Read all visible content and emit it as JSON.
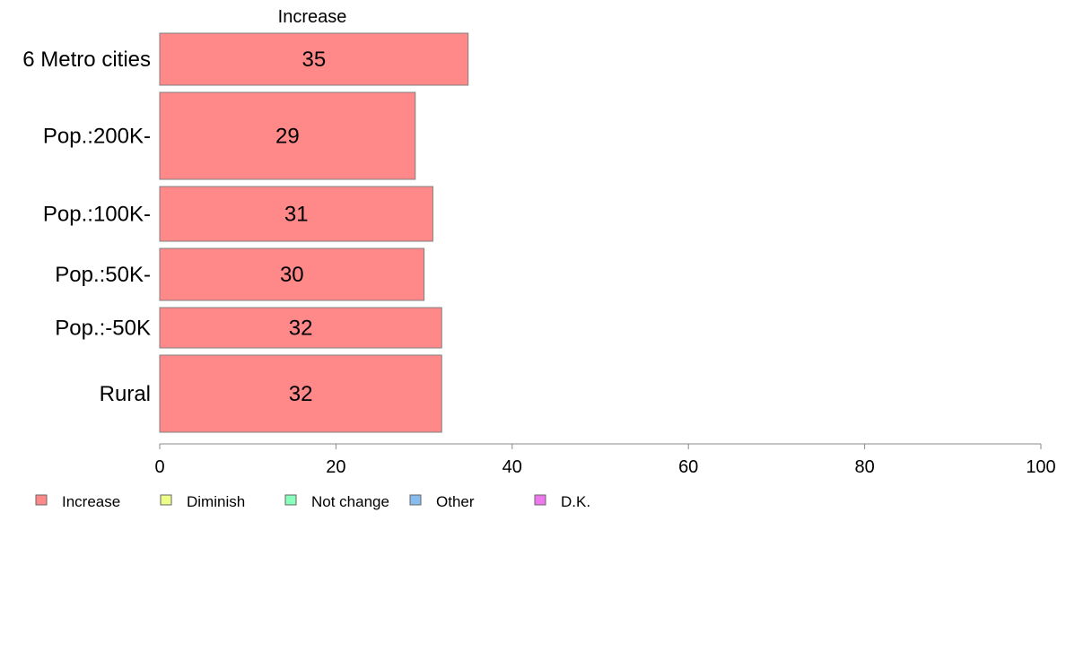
{
  "chart_data": {
    "type": "bar",
    "orientation": "horizontal",
    "series_label": "Increase",
    "categories": [
      "6 Metro cities",
      "Pop.:200K-",
      "Pop.:100K-",
      "Pop.:50K-",
      "Pop.:-50K",
      "Rural"
    ],
    "series": [
      {
        "name": "Increase",
        "values": [
          35,
          29,
          31,
          30,
          32,
          32
        ],
        "value_labels": [
          "35",
          "29",
          "31",
          "30",
          "32",
          "32"
        ]
      }
    ],
    "xlim": [
      0,
      100
    ],
    "xticks": [
      0,
      20,
      40,
      60,
      80,
      100
    ],
    "xtick_labels": [
      "0",
      "20",
      "40",
      "60",
      "80",
      "100"
    ],
    "grid": false,
    "legend_position": "bottom-left",
    "legend": [
      {
        "name": "Increase",
        "color": "#FF8888"
      },
      {
        "name": "Diminish",
        "color": "#EEFF88"
      },
      {
        "name": "Not change",
        "color": "#88FFBB"
      },
      {
        "name": "Other",
        "color": "#88BBEE"
      },
      {
        "name": "D.K.",
        "color": "#EE77EE"
      }
    ]
  }
}
